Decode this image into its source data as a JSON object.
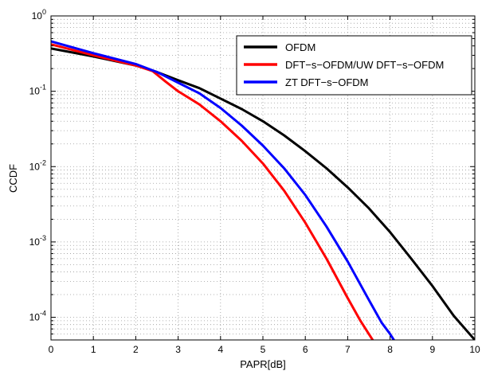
{
  "chart_data": {
    "type": "line",
    "xlabel": "PAPR[dB]",
    "ylabel": "CCDF",
    "xlim": [
      0,
      10
    ],
    "ylim": [
      5e-05,
      1
    ],
    "yscale": "log",
    "grid": true,
    "legend_position": "top-right",
    "x_ticks": [
      "0",
      "1",
      "2",
      "3",
      "4",
      "5",
      "6",
      "7",
      "8",
      "9",
      "10"
    ],
    "y_ticks": [
      {
        "value": 1,
        "base": "10",
        "exp": "0"
      },
      {
        "value": 0.1,
        "base": "10",
        "exp": "-1"
      },
      {
        "value": 0.01,
        "base": "10",
        "exp": "-2"
      },
      {
        "value": 0.001,
        "base": "10",
        "exp": "-3"
      },
      {
        "value": 0.0001,
        "base": "10",
        "exp": "-4"
      }
    ],
    "series": [
      {
        "name": "OFDM",
        "color": "#000000",
        "x": [
          0,
          1,
          2,
          2.5,
          3,
          3.5,
          4,
          4.5,
          5,
          5.5,
          6,
          6.5,
          7,
          7.5,
          8,
          8.5,
          9,
          9.5,
          10
        ],
        "y": [
          0.37,
          0.29,
          0.22,
          0.18,
          0.14,
          0.11,
          0.08,
          0.058,
          0.04,
          0.026,
          0.016,
          0.0095,
          0.0053,
          0.0028,
          0.00135,
          0.0006,
          0.00026,
          0.000105,
          5e-05
        ]
      },
      {
        "name": "DFT−s−OFDM/UW DFT−s−OFDM",
        "color": "#ff0000",
        "x": [
          0,
          1,
          2,
          2.4,
          2.7,
          3,
          3.5,
          4,
          4.5,
          5,
          5.5,
          6,
          6.5,
          7,
          7.3,
          7.5,
          7.7
        ],
        "y": [
          0.42,
          0.3,
          0.22,
          0.185,
          0.135,
          0.1,
          0.067,
          0.04,
          0.022,
          0.011,
          0.0048,
          0.0018,
          0.0006,
          0.00018,
          9e-05,
          6e-05,
          4e-05
        ]
      },
      {
        "name": "ZT DFT−s−OFDM",
        "color": "#0000ff",
        "x": [
          0,
          1,
          2,
          2.5,
          3,
          3.5,
          4,
          4.5,
          5,
          5.5,
          6,
          6.5,
          7,
          7.5,
          7.8,
          8,
          8.2
        ],
        "y": [
          0.46,
          0.32,
          0.23,
          0.18,
          0.13,
          0.094,
          0.06,
          0.035,
          0.019,
          0.0095,
          0.0042,
          0.0016,
          0.00055,
          0.00017,
          8.5e-05,
          6e-05,
          4e-05
        ]
      }
    ]
  }
}
